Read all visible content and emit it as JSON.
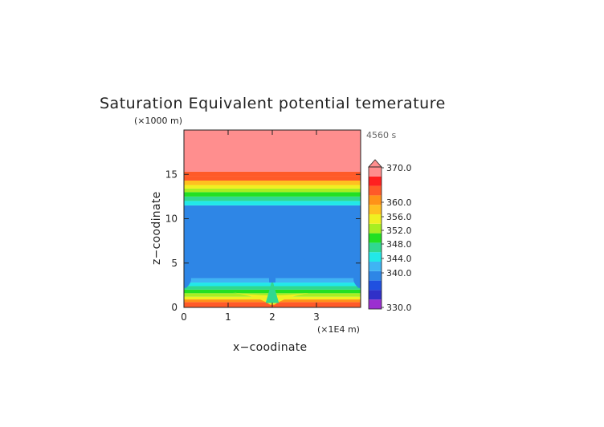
{
  "chart_data": {
    "type": "heatmap",
    "title": "Saturation Equivalent potential temerature",
    "xlabel": "x−coodinate",
    "ylabel": "z−coodinate",
    "x_unit": "(×1E4 m)",
    "y_unit": "(×1000 m)",
    "time_label": "4560 s",
    "xlim": [
      0,
      4
    ],
    "ylim": [
      0,
      20
    ],
    "x_ticks": [
      0,
      1,
      2,
      3
    ],
    "y_ticks": [
      0,
      5,
      10,
      15
    ],
    "grid": false,
    "colorbar": {
      "position": "right",
      "labels": [
        "370.0",
        "360.0",
        "356.0",
        "352.0",
        "348.0",
        "344.0",
        "340.0",
        "330.0"
      ],
      "levels": [
        330,
        338,
        340,
        342,
        344,
        346,
        348,
        350,
        352,
        354,
        356,
        358,
        360,
        364,
        370
      ],
      "colors": [
        "#9b2fd0",
        "#3030c8",
        "#2050e0",
        "#2e86e6",
        "#3fb4f4",
        "#22e8e8",
        "#30d890",
        "#22e022",
        "#a8ee22",
        "#f0f022",
        "#ffc020",
        "#ff9218",
        "#ff5a28",
        "#ff2020",
        "#ff8e8e"
      ],
      "extend_top": true
    },
    "bands": [
      {
        "z": [
          0,
          0.6
        ],
        "value": 361
      },
      {
        "z": [
          0.6,
          0.9
        ],
        "value": 358
      },
      {
        "z": [
          0.9,
          1.2
        ],
        "value": 354
      },
      {
        "z": [
          1.2,
          1.6
        ],
        "value": 352
      },
      {
        "z": [
          1.6,
          2.0
        ],
        "value": 350
      },
      {
        "z": [
          2.0,
          2.4
        ],
        "value": 348
      },
      {
        "z": [
          2.4,
          2.8
        ],
        "value": 346
      },
      {
        "z": [
          2.8,
          3.3
        ],
        "value": 345
      },
      {
        "z": [
          3.3,
          11.5
        ],
        "value": 343
      },
      {
        "z": [
          11.5,
          12.0
        ],
        "value": 346
      },
      {
        "z": [
          12.0,
          12.5
        ],
        "value": 348
      },
      {
        "z": [
          12.5,
          13.0
        ],
        "value": 350
      },
      {
        "z": [
          13.0,
          13.4
        ],
        "value": 352
      },
      {
        "z": [
          13.4,
          13.8
        ],
        "value": 354
      },
      {
        "z": [
          13.8,
          14.3
        ],
        "value": 357
      },
      {
        "z": [
          14.3,
          14.8
        ],
        "value": 360
      },
      {
        "z": [
          14.8,
          15.3
        ],
        "value": 362
      },
      {
        "z": [
          15.3,
          20
        ],
        "value": 370
      }
    ]
  }
}
